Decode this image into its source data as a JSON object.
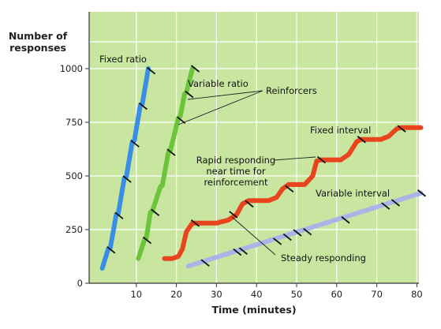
{
  "chart_data": {
    "type": "line",
    "xlabel": "Time (minutes)",
    "ylabel": "Number of responses",
    "xlim": [
      0,
      80
    ],
    "ylim": [
      0,
      1000
    ],
    "x_ticks": [
      "10",
      "20",
      "30",
      "40",
      "50",
      "60",
      "70",
      "80"
    ],
    "y_ticks": [
      "0",
      "250",
      "500",
      "750",
      "1000"
    ],
    "grid": true,
    "background_color": "#c8e6a0",
    "series": [
      {
        "name": "Fixed ratio",
        "color": "#3a8ee6",
        "points": [
          [
            1.5,
            70
          ],
          [
            3,
            160
          ],
          [
            3.5,
            165
          ],
          [
            5,
            320
          ],
          [
            5.5,
            325
          ],
          [
            7,
            490
          ],
          [
            7.5,
            495
          ],
          [
            9,
            660
          ],
          [
            9.5,
            665
          ],
          [
            11,
            830
          ],
          [
            11.5,
            835
          ],
          [
            13,
            1000
          ]
        ],
        "reinforcers": [
          [
            3.5,
            155
          ],
          [
            5.5,
            315
          ],
          [
            7.5,
            485
          ],
          [
            9.5,
            650
          ],
          [
            11.5,
            825
          ],
          [
            13.5,
            990
          ]
        ]
      },
      {
        "name": "Variable ratio",
        "color": "#6bc43a",
        "points": [
          [
            10.5,
            115
          ],
          [
            12,
            200
          ],
          [
            12.5,
            210
          ],
          [
            13.5,
            330
          ],
          [
            14,
            335
          ],
          [
            16,
            450
          ],
          [
            16.5,
            455
          ],
          [
            18,
            610
          ],
          [
            18.5,
            620
          ],
          [
            20.5,
            770
          ],
          [
            21,
            780
          ],
          [
            22,
            880
          ],
          [
            22.5,
            890
          ],
          [
            24,
            1000
          ]
        ],
        "reinforcers": [
          [
            12.5,
            200
          ],
          [
            14.5,
            330
          ],
          [
            18.5,
            610
          ],
          [
            21,
            760
          ],
          [
            23,
            880
          ],
          [
            24.5,
            1000
          ]
        ]
      },
      {
        "name": "Fixed interval",
        "color": "#e8451e",
        "points": [
          [
            17,
            115
          ],
          [
            19,
            115
          ],
          [
            20.5,
            125
          ],
          [
            21.5,
            160
          ],
          [
            22.5,
            240
          ],
          [
            24,
            280
          ],
          [
            30,
            280
          ],
          [
            33,
            295
          ],
          [
            35,
            320
          ],
          [
            36.5,
            370
          ],
          [
            38,
            385
          ],
          [
            43,
            385
          ],
          [
            45,
            400
          ],
          [
            46.5,
            440
          ],
          [
            48,
            460
          ],
          [
            52,
            460
          ],
          [
            54,
            500
          ],
          [
            55,
            570
          ],
          [
            56,
            575
          ],
          [
            61,
            575
          ],
          [
            63,
            600
          ],
          [
            65,
            660
          ],
          [
            66,
            670
          ],
          [
            71,
            670
          ],
          [
            73,
            685
          ],
          [
            75,
            720
          ],
          [
            76,
            725
          ],
          [
            81,
            725
          ]
        ],
        "reinforcers": [
          [
            24.5,
            280
          ],
          [
            34,
            320
          ],
          [
            38,
            370
          ],
          [
            48,
            440
          ],
          [
            56,
            575
          ],
          [
            66,
            670
          ],
          [
            76,
            720
          ]
        ]
      },
      {
        "name": "Variable interval",
        "color": "#aab4e6",
        "points": [
          [
            23,
            80
          ],
          [
            81,
            420
          ]
        ],
        "reinforcers": [
          [
            27,
            95
          ],
          [
            35,
            145
          ],
          [
            36.5,
            150
          ],
          [
            45,
            195
          ],
          [
            47.5,
            215
          ],
          [
            50,
            235
          ],
          [
            52.5,
            240
          ],
          [
            62,
            295
          ],
          [
            72,
            360
          ],
          [
            74.5,
            375
          ],
          [
            81,
            420
          ]
        ]
      }
    ],
    "annotations": {
      "fixed_ratio": "Fixed ratio",
      "variable_ratio": "Variable ratio",
      "reinforcers": "Reinforcers",
      "fixed_interval": "Fixed interval",
      "rapid_line1": "Rapid responding",
      "rapid_line2": "near time for",
      "rapid_line3": "reinforcement",
      "variable_interval": "Variable interval",
      "steady": "Steady responding"
    }
  }
}
